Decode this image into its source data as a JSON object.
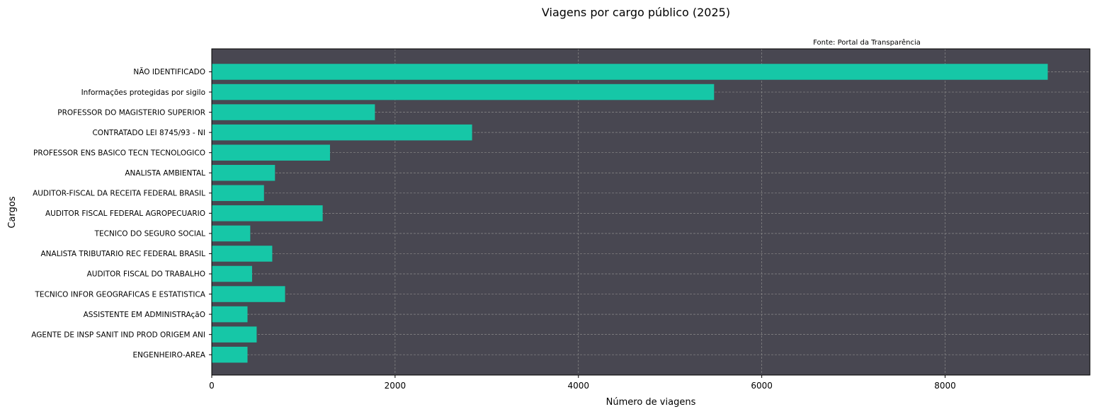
{
  "chart_data": {
    "type": "bar",
    "orientation": "horizontal",
    "title": "Viagens por cargo público (2025)",
    "source": "Fonte: Portal da Transparência",
    "xlabel": "Número de viagens",
    "ylabel": "Cargos",
    "xlim": [
      0,
      9580
    ],
    "xticks": [
      0,
      2000,
      4000,
      6000,
      8000
    ],
    "grid": true,
    "categories": [
      "NÃO IDENTIFICADO",
      "Informações protegidas por sigilo",
      "PROFESSOR DO MAGISTERIO SUPERIOR",
      "CONTRATADO LEI 8745/93 - NI",
      "PROFESSOR ENS BASICO TECN TECNOLOGICO",
      "ANALISTA AMBIENTAL",
      "AUDITOR-FISCAL DA RECEITA FEDERAL BRASIL",
      "AUDITOR FISCAL FEDERAL AGROPECUARIO",
      "TECNICO DO SEGURO SOCIAL",
      "ANALISTA TRIBUTARIO REC FEDERAL BRASIL",
      "AUDITOR FISCAL DO TRABALHO",
      "TECNICO INFOR GEOGRAFICAS E ESTATISTICA",
      "ASSISTENTE EM ADMINISTRAçãO",
      "AGENTE DE INSP SANIT IND PROD ORIGEM ANI",
      "ENGENHEIRO-AREA"
    ],
    "values": [
      9120,
      5480,
      1780,
      2840,
      1290,
      690,
      570,
      1210,
      420,
      660,
      440,
      800,
      390,
      490,
      390
    ],
    "colors": {
      "bar": "#16c7a7",
      "plot_background": "#484751",
      "grid": "#8a8a8a"
    }
  }
}
